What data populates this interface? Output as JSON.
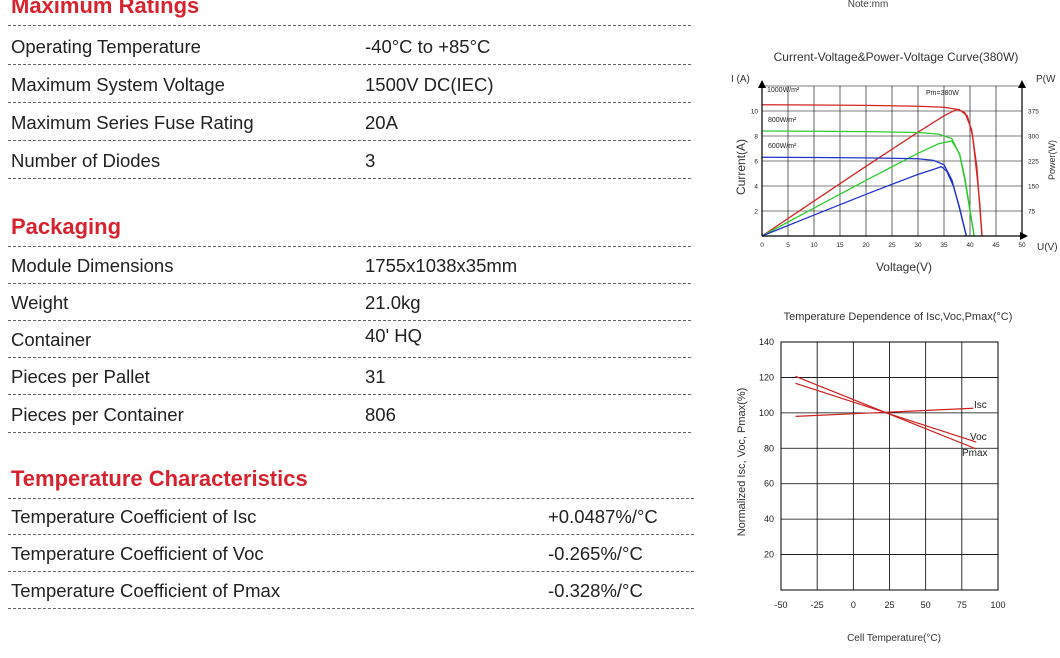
{
  "note": "Note:mm",
  "sections": {
    "max_ratings": {
      "title": "Maximum Ratings",
      "rows": [
        {
          "label": "Operating Temperature",
          "value": "-40°C to +85°C"
        },
        {
          "label": "Maximum System Voltage",
          "value": "1500V DC(IEC)"
        },
        {
          "label": "Maximum Series Fuse Rating",
          "value": "20A"
        },
        {
          "label": "Number of Diodes",
          "value": "3"
        }
      ]
    },
    "packaging": {
      "title": "Packaging",
      "rows": [
        {
          "label": "Module Dimensions",
          "value": "1755x1038x35mm"
        },
        {
          "label": "Weight",
          "value": "21.0kg"
        },
        {
          "label": "Container",
          "value": "40' HQ"
        },
        {
          "label": "Pieces per Pallet",
          "value": "31"
        },
        {
          "label": "Pieces per Container",
          "value": "806"
        }
      ]
    },
    "temperature": {
      "title": "Temperature Characteristics",
      "rows": [
        {
          "label": "Temperature Coefficient of Isc",
          "value": "+0.0487%/°C"
        },
        {
          "label": "Temperature Coefficient of Voc",
          "value": "-0.265%/°C"
        },
        {
          "label": "Temperature Coefficient of Pmax",
          "value": "-0.328%/°C"
        }
      ]
    }
  },
  "chart_data": [
    {
      "type": "line",
      "title": "Current-Voltage&Power-Voltage Curve(380W)",
      "xlabel": "Voltage(V)",
      "x_unit_label": "U(V)",
      "ylabel": "Current(A)",
      "y_unit_label": "I (A)",
      "y2label": "Power(W)",
      "y2_unit_label": "P(W",
      "xlim": [
        0,
        50
      ],
      "ylim": [
        0,
        12
      ],
      "y2lim": [
        0,
        450
      ],
      "xticks": [
        "0",
        "5",
        "10",
        "15",
        "20",
        "25",
        "30",
        "35",
        "40",
        "45",
        "50"
      ],
      "yticks": [
        "2",
        "4",
        "6",
        "8",
        "10"
      ],
      "y2ticks": [
        "75",
        "150",
        "225",
        "300",
        "375"
      ],
      "annotations": {
        "irr1000": "1000W/m²",
        "irr800": "800W/m²",
        "irr600": "600W/m²",
        "pm": "Pm=380W"
      },
      "series": [
        {
          "name": "1000W/m²",
          "color": "#d42525",
          "iv": [
            [
              0,
              10.5
            ],
            [
              10,
              10.48
            ],
            [
              20,
              10.45
            ],
            [
              30,
              10.38
            ],
            [
              35,
              10.3
            ],
            [
              38,
              10.1
            ],
            [
              39.5,
              9.6
            ],
            [
              40.5,
              8
            ],
            [
              41.3,
              5
            ],
            [
              41.9,
              2.5
            ],
            [
              42.3,
              0
            ]
          ],
          "pv": [
            [
              0,
              0
            ],
            [
              10,
              104.8
            ],
            [
              20,
              209
            ],
            [
              30,
              311.4
            ],
            [
              35,
              360.5
            ],
            [
              37.5,
              380
            ],
            [
              39,
              370
            ],
            [
              40.3,
              320
            ],
            [
              41.3,
              210
            ],
            [
              42.3,
              0
            ]
          ]
        },
        {
          "name": "800W/m²",
          "color": "#2ecc2e",
          "iv": [
            [
              0,
              8.4
            ],
            [
              10,
              8.38
            ],
            [
              20,
              8.35
            ],
            [
              30,
              8.28
            ],
            [
              34,
              8.15
            ],
            [
              36.5,
              7.8
            ],
            [
              38,
              6.5
            ],
            [
              39,
              4.5
            ],
            [
              40,
              2
            ],
            [
              40.8,
              0
            ]
          ],
          "pv": [
            [
              0,
              0
            ],
            [
              10,
              83.8
            ],
            [
              20,
              167
            ],
            [
              30,
              248
            ],
            [
              34,
              277
            ],
            [
              36.5,
              285
            ],
            [
              38,
              247
            ],
            [
              39,
              175
            ],
            [
              40,
              80
            ],
            [
              40.8,
              0
            ]
          ]
        },
        {
          "name": "600W/m²",
          "color": "#2233cc",
          "iv": [
            [
              0,
              6.3
            ],
            [
              10,
              6.28
            ],
            [
              20,
              6.25
            ],
            [
              30,
              6.18
            ],
            [
              33,
              6.05
            ],
            [
              35,
              5.7
            ],
            [
              36.5,
              4.5
            ],
            [
              37.8,
              2.5
            ],
            [
              39.3,
              0
            ]
          ],
          "pv": [
            [
              0,
              0
            ],
            [
              10,
              62.8
            ],
            [
              20,
              125
            ],
            [
              30,
              185
            ],
            [
              33,
              200
            ],
            [
              34.5,
              208
            ],
            [
              35.5,
              195
            ],
            [
              36.8,
              150
            ],
            [
              38,
              85
            ],
            [
              39.3,
              0
            ]
          ]
        }
      ]
    },
    {
      "type": "line",
      "title": "Temperature Dependence of Isc,Voc,Pmax(°C)",
      "xlabel": "Cell Temperature(°C)",
      "ylabel": "Normalized Isc, Voc, Pmax(%)",
      "xlim": [
        -50,
        100
      ],
      "ylim": [
        0,
        140
      ],
      "xticks": [
        "-50",
        "-25",
        "0",
        "25",
        "50",
        "75",
        "100"
      ],
      "yticks": [
        "20",
        "40",
        "60",
        "80",
        "100",
        "120",
        "140"
      ],
      "series": [
        {
          "name": "Isc",
          "color": "#cc2222",
          "points": [
            [
              -40,
              98
            ],
            [
              83,
              102.6
            ]
          ]
        },
        {
          "name": "Voc",
          "color": "#cc2222",
          "points": [
            [
              -40,
              116.7
            ],
            [
              85,
              83.5
            ]
          ]
        },
        {
          "name": "Pmax",
          "color": "#cc2222",
          "points": [
            [
              -40,
              120.6
            ],
            [
              85,
              79.6
            ]
          ]
        }
      ]
    }
  ]
}
